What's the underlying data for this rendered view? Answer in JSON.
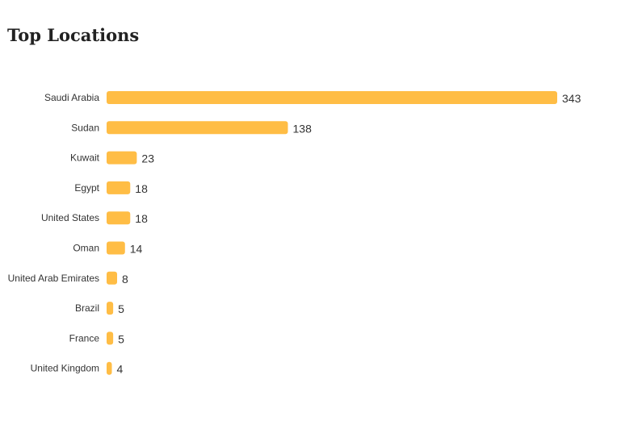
{
  "page": {
    "title": "Top Locations"
  },
  "chart_data": {
    "type": "bar",
    "orientation": "horizontal",
    "title": "Top Locations",
    "categories": [
      "Saudi Arabia",
      "Sudan",
      "Kuwait",
      "Egypt",
      "United States",
      "Oman",
      "United Arab Emirates",
      "Brazil",
      "France",
      "United Kingdom"
    ],
    "values": [
      343,
      138,
      23,
      18,
      18,
      14,
      8,
      5,
      5,
      4
    ],
    "bar_color": "#ffbd45",
    "grid": false,
    "legend": "none",
    "data_labels": true
  }
}
